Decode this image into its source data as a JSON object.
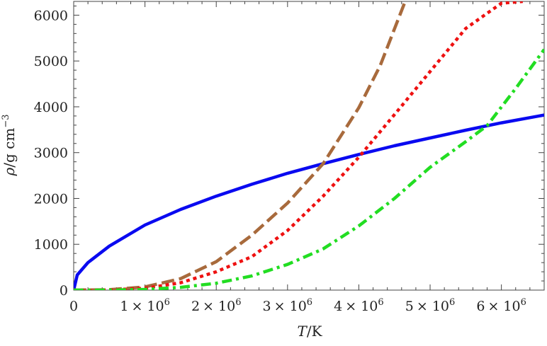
{
  "chart_data": {
    "type": "line",
    "xlabel": {
      "symbol": "T",
      "unit": "/K"
    },
    "ylabel": {
      "symbol": "ρ",
      "unit": "/g cm",
      "exponent": "−3"
    },
    "xlim": [
      0,
      6600000
    ],
    "ylim": [
      0,
      6300
    ],
    "x_ticks": [
      {
        "value": 0,
        "mantissa": "0",
        "base": "",
        "exponent": ""
      },
      {
        "value": 1000000,
        "mantissa": "1",
        "base": "× 10",
        "exponent": "6"
      },
      {
        "value": 2000000,
        "mantissa": "2",
        "base": "× 10",
        "exponent": "6"
      },
      {
        "value": 3000000,
        "mantissa": "3",
        "base": "× 10",
        "exponent": "6"
      },
      {
        "value": 4000000,
        "mantissa": "4",
        "base": "× 10",
        "exponent": "6"
      },
      {
        "value": 5000000,
        "mantissa": "5",
        "base": "× 10",
        "exponent": "6"
      },
      {
        "value": 6000000,
        "mantissa": "6",
        "base": "× 10",
        "exponent": "6"
      }
    ],
    "y_ticks": [
      {
        "value": 0,
        "label": "0"
      },
      {
        "value": 1000,
        "label": "1000"
      },
      {
        "value": 2000,
        "label": "2000"
      },
      {
        "value": 3000,
        "label": "3000"
      },
      {
        "value": 4000,
        "label": "4000"
      },
      {
        "value": 5000,
        "label": "5000"
      },
      {
        "value": 6000,
        "label": "6000"
      }
    ],
    "grid": false,
    "legend": "none",
    "series": [
      {
        "color": "#0a0af0",
        "dash": "solid",
        "x": [
          0,
          50000,
          200000,
          500000,
          1000000,
          1500000,
          2000000,
          2500000,
          3000000,
          3500000,
          4000000,
          4500000,
          5000000,
          5500000,
          6000000,
          6600000
        ],
        "y": [
          0,
          330,
          600,
          960,
          1420,
          1760,
          2050,
          2310,
          2550,
          2760,
          2960,
          3150,
          3320,
          3490,
          3650,
          3820
        ]
      },
      {
        "color": "#a86a3c",
        "dash": "dashed",
        "x": [
          0,
          500000,
          1000000,
          1500000,
          2000000,
          2500000,
          3000000,
          3500000,
          4000000,
          4300000,
          4650000
        ],
        "y": [
          0,
          10,
          70,
          250,
          620,
          1200,
          1900,
          2760,
          3980,
          4900,
          6300
        ]
      },
      {
        "color": "#ee1111",
        "dash": "dotted",
        "x": [
          0,
          500000,
          1000000,
          1500000,
          2000000,
          2500000,
          3000000,
          3500000,
          4000000,
          4500000,
          5000000,
          5500000,
          6000000,
          6300000
        ],
        "y": [
          0,
          5,
          40,
          160,
          400,
          730,
          1300,
          2050,
          2900,
          3830,
          4770,
          5710,
          6260,
          6300
        ]
      },
      {
        "color": "#22dd22",
        "dash": "dash-dot",
        "x": [
          0,
          500000,
          1000000,
          1500000,
          2000000,
          2500000,
          3000000,
          3500000,
          4000000,
          4500000,
          5000000,
          5500000,
          5800000,
          6200000,
          6600000
        ],
        "y": [
          0,
          2,
          15,
          60,
          150,
          310,
          560,
          900,
          1400,
          2000,
          2680,
          3240,
          3590,
          4400,
          5250
        ]
      }
    ]
  }
}
